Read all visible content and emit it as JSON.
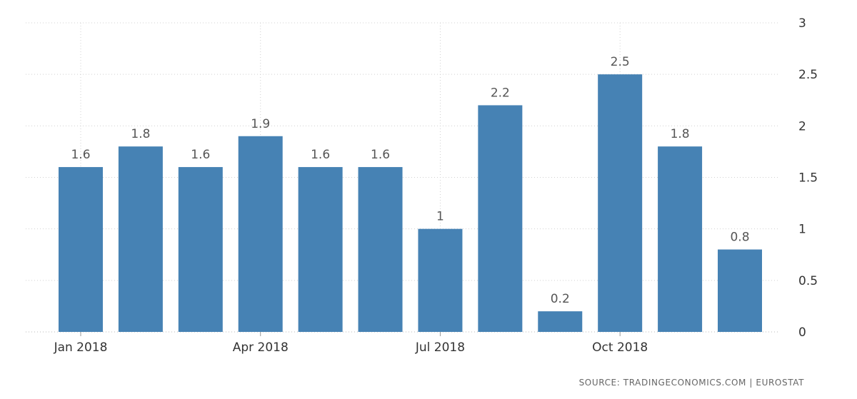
{
  "chart_data": {
    "type": "bar",
    "title": "",
    "xlabel": "",
    "ylabel": "",
    "categories": [
      "Jan 2018",
      "Feb 2018",
      "Mar 2018",
      "Apr 2018",
      "May 2018",
      "Jun 2018",
      "Jul 2018",
      "Aug 2018",
      "Sep 2018",
      "Oct 2018",
      "Nov 2018",
      "Dec 2018"
    ],
    "values": [
      1.6,
      1.8,
      1.6,
      1.9,
      1.6,
      1.6,
      1.0,
      2.2,
      0.2,
      2.5,
      1.8,
      0.8
    ],
    "data_labels": [
      "1.6",
      "1.8",
      "1.6",
      "1.9",
      "1.6",
      "1.6",
      "1",
      "2.2",
      "0.2",
      "2.5",
      "1.8",
      "0.8"
    ],
    "x_tick_labels": [
      {
        "label": "Jan 2018",
        "category_index": 0
      },
      {
        "label": "Apr 2018",
        "category_index": 3
      },
      {
        "label": "Jul 2018",
        "category_index": 6
      },
      {
        "label": "Oct 2018",
        "category_index": 9
      }
    ],
    "y_ticks": [
      0,
      0.5,
      1,
      1.5,
      2,
      2.5,
      3
    ],
    "y_tick_labels": [
      "0",
      "0.5",
      "1",
      "1.5",
      "2",
      "2.5",
      "3"
    ],
    "ylim": [
      0,
      3
    ],
    "y_axis_side": "right",
    "grid": true,
    "legend": "none",
    "bar_color": "#4682b4",
    "source": "SOURCE: TRADINGECONOMICS.COM  |  EUROSTAT"
  }
}
